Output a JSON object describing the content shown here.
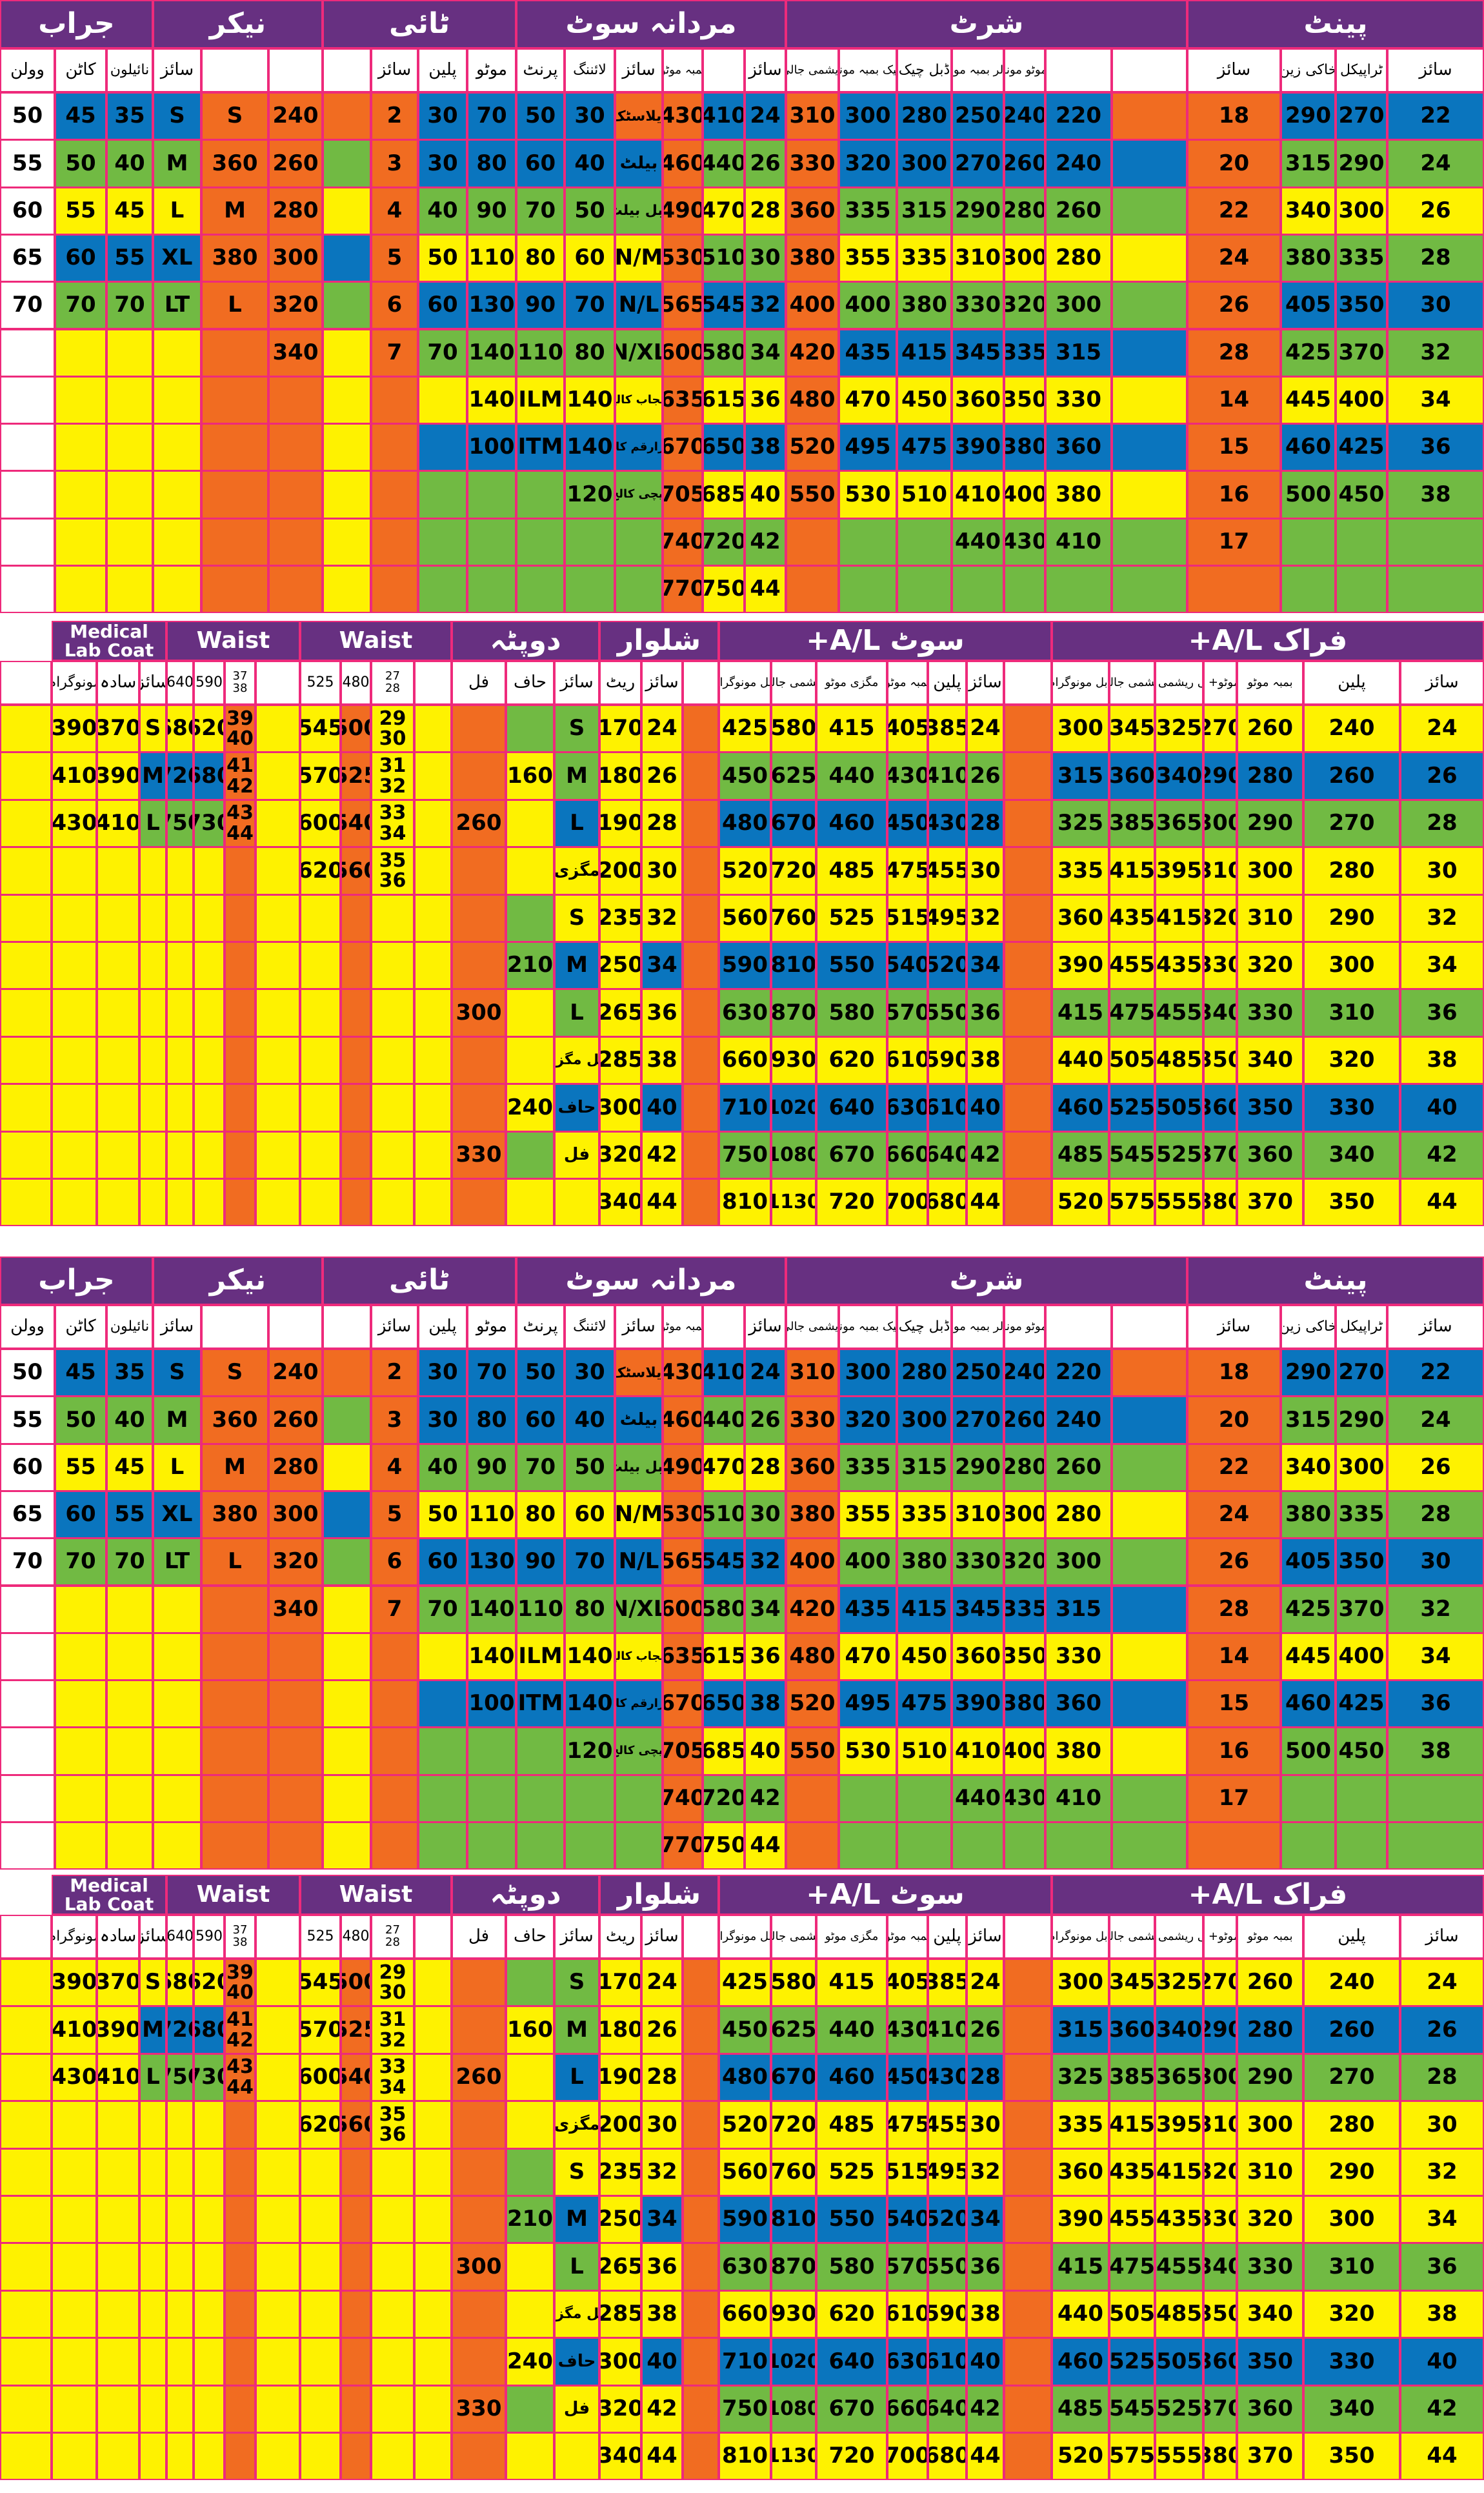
{
  "sections": [
    {
      "id": "A",
      "titles": [
        [
          "pant",
          "پینٹ"
        ],
        [
          "shirt",
          "شرٹ"
        ],
        [
          "mens-suit",
          "مردانہ سوٹ"
        ],
        [
          "tie",
          "ٹائی"
        ],
        [
          "nikar",
          "نیکر"
        ],
        [
          "socks",
          "جراب"
        ]
      ],
      "headers": [
        "سائز",
        "ٹراپیکل",
        "خاکی زین",
        "سائز",
        "",
        "بمبہ موٹو مونوگرام",
        "کف کالر بمبہ مونوگرام",
        "ڈبل چیک",
        "ڈبل چیک بمبہ مونوگرام",
        "ریشمی جالی",
        "سائز",
        "",
        "بمبہ موٹو",
        "سائز",
        "لائننگ",
        "پرنٹ",
        "موٹو",
        "پلین",
        "سائز",
        "",
        "",
        "سائز",
        "نائیلون",
        "کاٹن",
        "وولن"
      ],
      "rows": [
        [
          "22",
          "270",
          "290",
          "18",
          "220",
          "240",
          "250",
          "280",
          "300",
          "310",
          "24",
          "410",
          "430",
          "ایلاسٹک",
          "30",
          "50",
          "70",
          "30",
          "2",
          "240",
          "S",
          "S",
          "35",
          "45",
          "50"
        ],
        [
          "24",
          "290",
          "315",
          "20",
          "240",
          "260",
          "270",
          "300",
          "320",
          "330",
          "26",
          "440",
          "460",
          "بیلٹ",
          "40",
          "60",
          "80",
          "30",
          "3",
          "260",
          "360",
          "M",
          "40",
          "50",
          "55"
        ],
        [
          "26",
          "300",
          "340",
          "22",
          "260",
          "280",
          "290",
          "315",
          "335",
          "360",
          "28",
          "470",
          "490",
          "ڈبل بیلٹ",
          "50",
          "70",
          "90",
          "40",
          "4",
          "280",
          "M",
          "L",
          "45",
          "55",
          "60"
        ],
        [
          "28",
          "335",
          "380",
          "24",
          "280",
          "300",
          "310",
          "335",
          "355",
          "380",
          "30",
          "510",
          "530",
          "N/M",
          "60",
          "80",
          "110",
          "50",
          "5",
          "300",
          "380",
          "XL",
          "55",
          "60",
          "65"
        ],
        [
          "30",
          "350",
          "405",
          "26",
          "300",
          "320",
          "330",
          "380",
          "400",
          "400",
          "32",
          "545",
          "565",
          "N/L",
          "70",
          "90",
          "130",
          "60",
          "6",
          "320",
          "L",
          "LT",
          "70",
          "70",
          "70"
        ],
        [
          "32",
          "370",
          "425",
          "28",
          "315",
          "335",
          "345",
          "415",
          "435",
          "420",
          "34",
          "580",
          "600",
          "N/XL",
          "80",
          "110",
          "140",
          "70",
          "7",
          "340",
          "",
          "",
          "",
          "",
          ""
        ],
        [
          "34",
          "400",
          "445",
          "14",
          "330",
          "350",
          "360",
          "450",
          "470",
          "480",
          "36",
          "615",
          "635",
          "پنجاب کالج",
          "140",
          "ILM",
          "140",
          "",
          "",
          "",
          "",
          "",
          "",
          "",
          ""
        ],
        [
          "36",
          "425",
          "460",
          "15",
          "360",
          "380",
          "390",
          "475",
          "495",
          "520",
          "38",
          "650",
          "670",
          "دارارقم کالج",
          "140",
          "ITM",
          "100",
          "",
          "",
          "",
          "",
          "",
          "",
          "",
          ""
        ],
        [
          "38",
          "450",
          "500",
          "16",
          "380",
          "400",
          "410",
          "510",
          "530",
          "550",
          "40",
          "685",
          "705",
          "ایچی کالج",
          "120",
          "",
          "",
          "",
          "",
          "",
          "",
          "",
          "",
          "",
          ""
        ],
        [
          "",
          "",
          "",
          "17",
          "410",
          "430",
          "440",
          "",
          "",
          "",
          "42",
          "720",
          "740",
          "",
          "",
          "",
          "",
          "",
          "",
          "",
          "",
          "",
          "",
          "",
          ""
        ],
        [
          "",
          "",
          "",
          "",
          "",
          "",
          "",
          "",
          "",
          "",
          "44",
          "750",
          "770",
          "",
          "",
          "",
          "",
          "",
          "",
          "",
          "",
          "",
          "",
          "",
          ""
        ]
      ]
    },
    {
      "id": "B",
      "titles": [
        [
          "frock",
          "+A/L فراک"
        ],
        [
          "suit",
          "+A/L سوٹ"
        ],
        [
          "shalwar",
          "شلوار"
        ],
        [
          "dupatta",
          "دوپٹہ"
        ],
        [
          "waist1",
          "Waist"
        ],
        [
          "waist2",
          "Waist"
        ],
        [
          "lab-coat",
          "Medical Lab Coat"
        ]
      ],
      "headers": [
        "سائز",
        "پلین",
        "بمبہ موٹو",
        "بمبہ موٹو+ مگزی",
        "خاکی ریشمی پلین",
        "ریشمی جالی",
        "ڈبل مونوگرام",
        "سائز",
        "پلین",
        "بمبہ موٹو",
        "مگزی موٹو",
        "ریشمی جالی",
        "ڈبل مونوگرام",
        "سائز",
        "ریٹ",
        "سائز",
        "حاف",
        "فل",
        "27 28",
        "480",
        "525",
        "37 38",
        "590",
        "640",
        "سائز",
        "سادہ",
        "مونوگرام"
      ],
      "rows": [
        [
          "24",
          "240",
          "260",
          "270",
          "325",
          "345",
          "300",
          "24",
          "385",
          "405",
          "415",
          "580",
          "425",
          "24",
          "170",
          "S",
          "",
          "",
          "29 30",
          "500",
          "545",
          "39 40",
          "620",
          "680",
          "S",
          "370",
          "390"
        ],
        [
          "26",
          "260",
          "280",
          "290",
          "340",
          "360",
          "315",
          "26",
          "410",
          "430",
          "440",
          "625",
          "450",
          "26",
          "180",
          "M",
          "160",
          "",
          "31 32",
          "525",
          "570",
          "41 42",
          "680",
          "720",
          "M",
          "390",
          "410"
        ],
        [
          "28",
          "270",
          "290",
          "300",
          "365",
          "385",
          "325",
          "28",
          "430",
          "450",
          "460",
          "670",
          "480",
          "28",
          "190",
          "L",
          "",
          "260",
          "33 34",
          "540",
          "600",
          "43 44",
          "730",
          "750",
          "L",
          "410",
          "430"
        ],
        [
          "30",
          "280",
          "300",
          "310",
          "395",
          "415",
          "335",
          "30",
          "455",
          "475",
          "485",
          "720",
          "520",
          "30",
          "200",
          "مگزی",
          "",
          "",
          "35 36",
          "560",
          "620",
          "",
          "",
          "",
          "",
          "",
          ""
        ],
        [
          "32",
          "290",
          "310",
          "320",
          "415",
          "435",
          "360",
          "32",
          "495",
          "515",
          "525",
          "760",
          "560",
          "32",
          "235",
          "S",
          "",
          "",
          "",
          "",
          "",
          "",
          "",
          "",
          "",
          "",
          ""
        ],
        [
          "34",
          "300",
          "320",
          "330",
          "435",
          "455",
          "390",
          "34",
          "520",
          "540",
          "550",
          "810",
          "590",
          "34",
          "250",
          "M",
          "210",
          "",
          "",
          "",
          "",
          "",
          "",
          "",
          "",
          "",
          ""
        ],
        [
          "36",
          "310",
          "330",
          "340",
          "455",
          "475",
          "415",
          "36",
          "550",
          "570",
          "580",
          "870",
          "630",
          "36",
          "265",
          "L",
          "",
          "300",
          "",
          "",
          "",
          "",
          "",
          "",
          "",
          "",
          ""
        ],
        [
          "38",
          "320",
          "340",
          "350",
          "485",
          "505",
          "440",
          "38",
          "590",
          "610",
          "620",
          "930",
          "660",
          "38",
          "285",
          "ڈبل مگزی",
          "",
          "",
          "",
          "",
          "",
          "",
          "",
          "",
          "",
          "",
          ""
        ],
        [
          "40",
          "330",
          "350",
          "360",
          "505",
          "525",
          "460",
          "40",
          "610",
          "630",
          "640",
          "1020",
          "710",
          "40",
          "300",
          "حاف",
          "240",
          "",
          "",
          "",
          "",
          "",
          "",
          "",
          "",
          "",
          ""
        ],
        [
          "42",
          "340",
          "360",
          "370",
          "525",
          "545",
          "485",
          "42",
          "640",
          "660",
          "670",
          "1080",
          "750",
          "42",
          "320",
          "فل",
          "",
          "330",
          "",
          "",
          "",
          "",
          "",
          "",
          "",
          "",
          ""
        ],
        [
          "44",
          "350",
          "370",
          "380",
          "555",
          "575",
          "520",
          "44",
          "680",
          "700",
          "720",
          "1130",
          "810",
          "44",
          "340",
          "",
          "",
          "",
          "",
          "",
          "",
          "",
          "",
          "",
          "",
          "",
          ""
        ]
      ]
    }
  ],
  "colors": {
    "title_bg": "#673081",
    "grid": "#ee2a7b",
    "blue": "#0a75be",
    "green": "#71ba43",
    "yellow": "#fef200",
    "orange": "#f16c21",
    "white": "#ffffff"
  },
  "pattern_A": [
    "BBBO@BBBBBOBBO@BBBBOOOOBBB",
    "GGGOBBBBBBOGGOBBBBBOGOOGGG",
    "YYYOGGGGGGOYYOGGGGGOYOOYYY",
    "GGGOYYYYYYOGGOYYYYYOBOOBBB",
    "BBBOGGGGGGOBBOBBBBBOGOOGGG",
    "GGGOBBBBBBOGGOGGGGGOYOOYYY",
    "YYYOYYYYYYOYYOYYYYYOYOOYYY",
    "BBBOBBBBBBOBBOBBBBBOYOOYYY",
    "GGGOYYYYYYOYYOGGGGGOYOOYYY",
    "GGGOGGGGGGOGGOGGGGGOYOOYYY",
    "GGGOGGGGGGOYYOGGGGGOYOOYYY"
  ],
  "pattern_B": [
    "YYYYYYYOYYYYYYOYYGGOYYOYYOYYY",
    "BBBBBBBOGGGGGGOYYGYOYYOYYOBBB",
    "GGGGGGGOBBBBBBOYYBYOYYOYYOGGG",
    "YYYYYYYOYYYYYYOYYYYOYYOYYOYYY",
    "YYYYYYYOYYYYYYOYYYGOYYOYYOYYY",
    "YYYYYYYOBBBBBBOBYBGOYYOYYOYYY",
    "GGGGGGGOGGGGGGOYYGYOYYOYYOYYY",
    "YYYYYYYOYYYYYYOYYYYOYYOYYOYYY",
    "BBBBBBBOBBBBBBOBYBYOYYOYYOYYY",
    "GGGGGGGOGGGGGGOYYYGOYYOYYOYYY",
    "YYYYYYYOYYYYYYOYYYYOYYOYYOYYY"
  ]
}
